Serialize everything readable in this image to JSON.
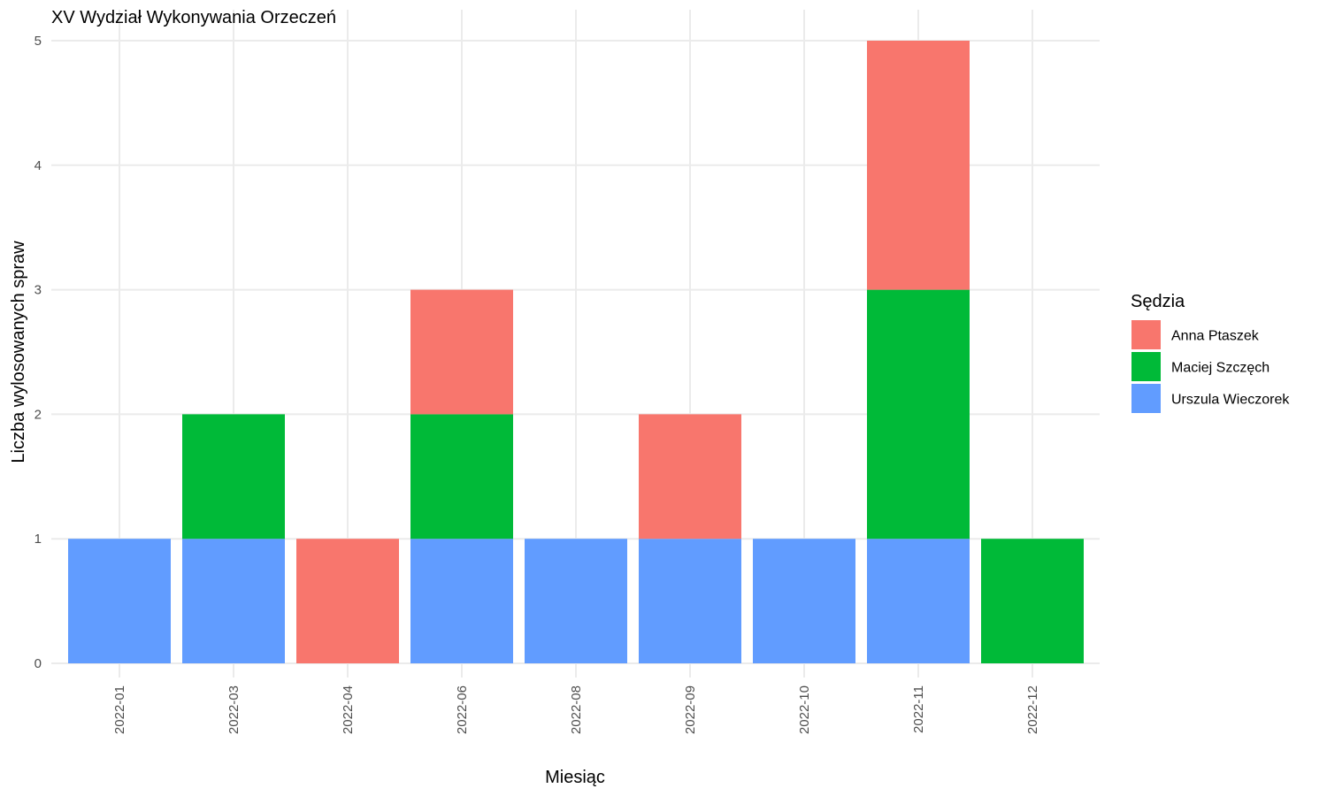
{
  "chart_data": {
    "type": "bar",
    "stacked": true,
    "title": "XV Wydział Wykonywania Orzeczeń",
    "xlabel": "Miesiąc",
    "ylabel": "Liczba wylosowanych spraw",
    "ylim": [
      0,
      5
    ],
    "yticks": [
      0,
      1,
      2,
      3,
      4,
      5
    ],
    "grid": true,
    "legend_position": "right",
    "legend_title": "Sędzia",
    "categories": [
      "2022-01",
      "2022-03",
      "2022-04",
      "2022-06",
      "2022-08",
      "2022-09",
      "2022-10",
      "2022-11",
      "2022-12"
    ],
    "stack_order": [
      "Urszula Wieczorek",
      "Maciej Szczęch",
      "Anna Ptaszek"
    ],
    "series": [
      {
        "name": "Anna Ptaszek",
        "color": "#F8766D",
        "values": [
          0,
          0,
          1,
          1,
          0,
          1,
          0,
          2,
          0
        ]
      },
      {
        "name": "Maciej Szczęch",
        "color": "#00BA38",
        "values": [
          0,
          1,
          0,
          1,
          0,
          0,
          0,
          2,
          1
        ]
      },
      {
        "name": "Urszula Wieczorek",
        "color": "#619CFF",
        "values": [
          1,
          1,
          0,
          1,
          1,
          1,
          1,
          1,
          0
        ]
      }
    ]
  }
}
